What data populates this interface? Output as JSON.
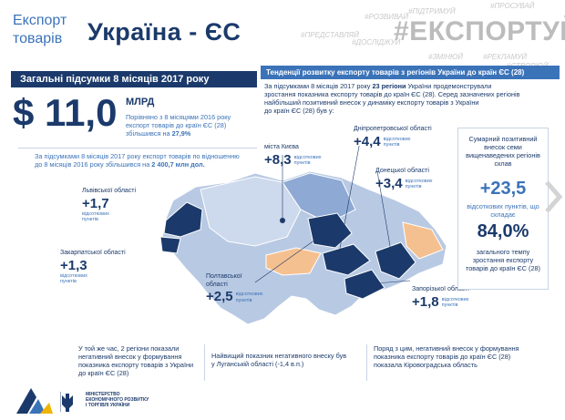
{
  "header": {
    "left_line1": "Експорт",
    "left_line2": "товарів",
    "title": "Україна - ЄС",
    "hashtag": "#ЕКСПОРТУЙ",
    "tag_cloud": [
      "#ПІДТРИМУЙ",
      "#РОЗВИВАЙ",
      "#ПРЕДСТАВЛЯЙ",
      "#ЗМІНЮЙ",
      "#РЕКЛАМУЙ",
      "#СТВОРЮЙ",
      "#ДОСЛІДЖУЙ",
      "#ПРОСУВАЙ"
    ]
  },
  "left_panel": {
    "banner": "Загальні підсумки 8 місяців 2017 року",
    "amount": "$ 11,0",
    "unit": "МЛРД",
    "compare_line1": "Порівняно з 8 місяцями 2016 року",
    "compare_line2": "експорт товарів до країн ЄС (28)",
    "compare_line3_prefix": "збільшився на ",
    "compare_pct": "27,9%",
    "summary_line1": "За підсумками 8 місяців 2017 року експорт товарів по відношенню",
    "summary_line2_prefix": "до 8 місяців 2016 року збільшився на ",
    "summary_amount": "2 400,7 млн дол."
  },
  "right_panel": {
    "banner": "Тенденції розвитку експорту товарів з регіонів України до країн ЄС (28)",
    "trend_line1_prefix": "За підсумками 8 місяців 2017 року ",
    "trend_bold": "23 регіони",
    "trend_line1_suffix": " України продемонстрували",
    "trend_line2": "зростання показника експорту товарів до країн ЄС (28). Серед зазначених регіонів",
    "trend_line3": "найбільший позитивний внесок у динаміку експорту товарів з України",
    "trend_line4": "до країн ЄС (28) був у:"
  },
  "regions": [
    {
      "name": "Львівської області",
      "value": "+1,7",
      "unit": "відсоткових пунктів"
    },
    {
      "name": "Закарпатської області",
      "value": "+1,3",
      "unit": "відсоткових пунктів"
    },
    {
      "name": "міста Києва",
      "value": "+8,3",
      "unit": "відсоткових пунктів"
    },
    {
      "name": "Дніпропетровської області",
      "value": "+4,4",
      "unit": "відсоткових пунктів"
    },
    {
      "name": "Донецької області",
      "value": "+3,4",
      "unit": "відсоткових пунктів"
    },
    {
      "name": "Полтавської області",
      "value": "+2,5",
      "unit": "відсоткових пунктів"
    },
    {
      "name": "Запорізької області",
      "value": "+1,8",
      "unit": "відсоткових пунктів"
    }
  ],
  "sidebox": {
    "label": "Сумарний позитивний внесок семи вищенаведених регіонів склав",
    "value": "+23,5",
    "units": "відсоткових пунктів, що складає",
    "pct": "84,0%",
    "tail": "загального темпу зростання експорту товарів до країн ЄС (28)"
  },
  "bottom": {
    "text1": "У той же час, 2 регіони показали негативний внесок у формування показника експорту товарів з України до країн ЄС (28)",
    "text2": "Найвищий показник негативного внеску був у Луганській області (-1,4 в.п.)",
    "text3": "Поряд з цим, негативний внесок у формування показника експорту товарів до країн ЄС (28) показала Кіровоградська область"
  },
  "ministry": {
    "line1": "МІНІСТЕРСТВО",
    "line2": "ЕКОНОМІЧНОГО РОЗВИТКУ",
    "line3": "І ТОРГІВЛІ УКРАЇНИ"
  },
  "colors": {
    "navy": "#1b3a6b",
    "accent_blue": "#3b73b9",
    "map_light": "#b8c9e3",
    "map_mid": "#8eaad4",
    "map_dark": "#1b3a6b",
    "map_negative": "#f5c08f"
  }
}
